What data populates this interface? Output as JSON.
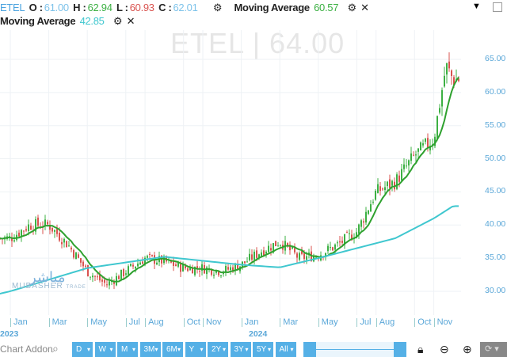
{
  "header": {
    "symbol": "ETEL",
    "o_label": "O :",
    "open": "61.00",
    "h_label": "H :",
    "high": "62.94",
    "l_label": "L :",
    "low": "60.93",
    "c_label": "C :",
    "close": "62.01",
    "ma1_label": "Moving Average",
    "ma1_value": "60.57",
    "ma2_label": "Moving Average",
    "ma2_value": "42.85"
  },
  "watermark": "ETEL  |  64.00",
  "colors": {
    "up": "#3cb043",
    "down": "#d9534f",
    "ma_short": "#2ea12e",
    "ma_long": "#3fc7cf",
    "accent": "#55b0e6"
  },
  "chart_data": {
    "type": "candlestick",
    "ylim": [
      27,
      69
    ],
    "y_ticks": [
      "65.00",
      "60.00",
      "55.00",
      "50.00",
      "45.00",
      "40.00",
      "35.00",
      "30.00"
    ],
    "x_ticks": [
      "Jan",
      "Mar",
      "May",
      "Jul",
      "Aug",
      "Oct",
      "Nov",
      "Jan",
      "Mar",
      "May",
      "Jul",
      "Aug",
      "Oct",
      "Nov"
    ],
    "year_labels": [
      "2023",
      "2024"
    ],
    "approx_close": [
      {
        "date": "2023-01",
        "close": 38
      },
      {
        "date": "2023-02",
        "close": 40
      },
      {
        "date": "2023-03",
        "close": 40
      },
      {
        "date": "2023-04",
        "close": 37
      },
      {
        "date": "2023-05",
        "close": 33
      },
      {
        "date": "2023-06",
        "close": 31
      },
      {
        "date": "2023-07",
        "close": 33
      },
      {
        "date": "2023-08",
        "close": 35
      },
      {
        "date": "2023-09",
        "close": 34.5
      },
      {
        "date": "2023-10",
        "close": 33.5
      },
      {
        "date": "2023-11",
        "close": 33.5
      },
      {
        "date": "2023-12",
        "close": 33
      },
      {
        "date": "2024-01",
        "close": 34
      },
      {
        "date": "2024-02",
        "close": 36
      },
      {
        "date": "2024-03",
        "close": 37.5
      },
      {
        "date": "2024-04",
        "close": 35
      },
      {
        "date": "2024-05",
        "close": 35.5
      },
      {
        "date": "2024-06",
        "close": 37
      },
      {
        "date": "2024-07",
        "close": 39
      },
      {
        "date": "2024-08",
        "close": 45
      },
      {
        "date": "2024-09",
        "close": 46.5
      },
      {
        "date": "2024-10",
        "close": 50.5
      },
      {
        "date": "2024-11",
        "close": 53
      },
      {
        "date": "2024-11-20",
        "close": 64
      },
      {
        "date": "2024-12",
        "close": 62
      }
    ],
    "ma_long_approx": [
      {
        "date": "2023-01",
        "value": 30
      },
      {
        "date": "2023-05",
        "value": 33.5
      },
      {
        "date": "2023-09",
        "value": 35.2
      },
      {
        "date": "2024-01",
        "value": 34
      },
      {
        "date": "2024-03",
        "value": 33.6
      },
      {
        "date": "2024-05",
        "value": 35
      },
      {
        "date": "2024-07",
        "value": 36.5
      },
      {
        "date": "2024-09",
        "value": 38
      },
      {
        "date": "2024-11",
        "value": 41
      },
      {
        "date": "2024-12",
        "value": 42.85
      }
    ]
  },
  "toolbar": {
    "addon_placeholder": "Chart Addon",
    "periods": [
      "D",
      "W",
      "M",
      "3M",
      "6M",
      "Y",
      "2Y",
      "3Y",
      "5Y",
      "All"
    ]
  }
}
